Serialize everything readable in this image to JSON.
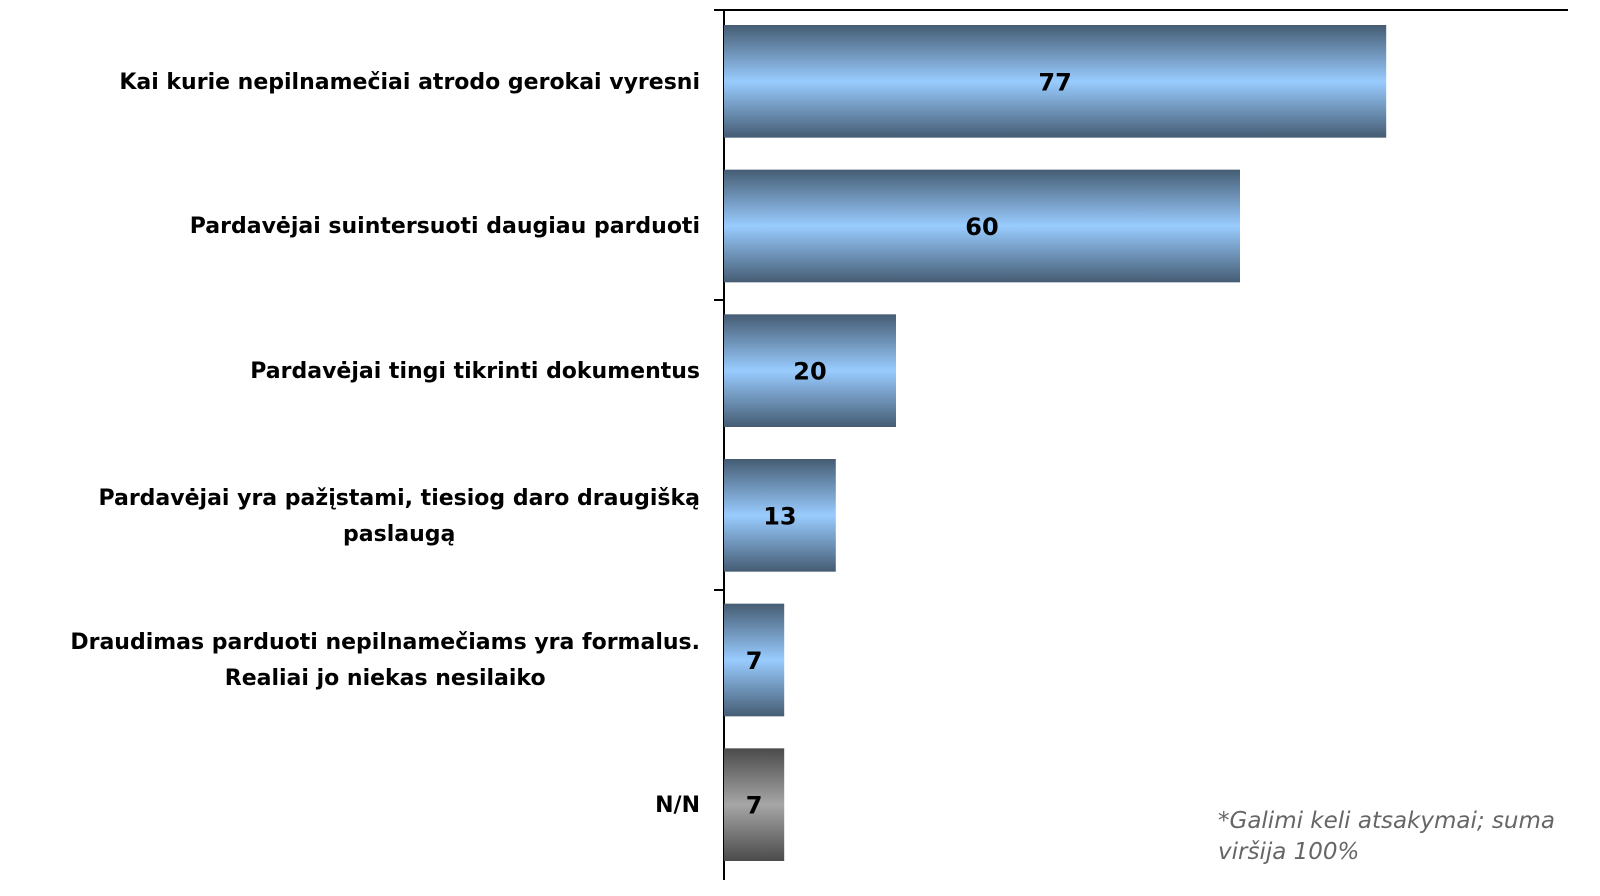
{
  "chart_data": {
    "type": "bar",
    "orientation": "horizontal",
    "categories": [
      "Kai kurie nepilnamečiai atrodo gerokai vyresni",
      "Pardavėjai suintersuoti daugiau parduoti",
      "Pardavėjai tingi tikrinti dokumentus",
      "Pardavėjai yra pažįstami, tiesiog daro draugišką\npaslaugą",
      "Draudimas parduoti nepilnamečiams yra formalus.\nRealiai jo niekas nesilaiko",
      "N/N"
    ],
    "values": [
      77,
      60,
      20,
      13,
      7,
      7
    ],
    "colors": [
      "#99ccff",
      "#99ccff",
      "#99ccff",
      "#99ccff",
      "#99ccff",
      "#a6a6a6"
    ],
    "xlim": [
      0,
      100
    ],
    "annotation": "*Galimi keli atsakymai; suma\nviršija 100%"
  }
}
